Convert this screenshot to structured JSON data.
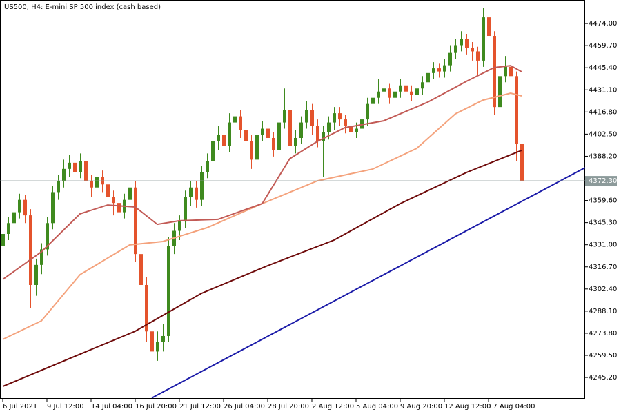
{
  "chart_data": {
    "type": "candlestick",
    "title": "US500, H4:  E-mini SP 500 index (cash based)",
    "up_color": "#3f8a1f",
    "down_color": "#e4532c",
    "xlim": [
      -0.5,
      105.5
    ],
    "ylim": [
      4231.4,
      4489.2
    ],
    "xticks": [
      {
        "value": 0,
        "label": "6 Jul 2021"
      },
      {
        "value": 8,
        "label": "9 Jul 12:00"
      },
      {
        "value": 16,
        "label": "14 Jul 04:00"
      },
      {
        "value": 24,
        "label": "16 Jul 20:00"
      },
      {
        "value": 32,
        "label": "21 Jul 12:00"
      },
      {
        "value": 40,
        "label": "26 Jul 04:00"
      },
      {
        "value": 48,
        "label": "28 Jul 20:00"
      },
      {
        "value": 56,
        "label": "2 Aug 12:00"
      },
      {
        "value": 64,
        "label": "5 Aug 04:00"
      },
      {
        "value": 72,
        "label": "9 Aug 20:00"
      },
      {
        "value": 80,
        "label": "12 Aug 12:00"
      },
      {
        "value": 88,
        "label": "17 Aug 04:00"
      }
    ],
    "yticks": [
      {
        "value": 4474,
        "label": "4474.00"
      },
      {
        "value": 4459.7,
        "label": "4459.70"
      },
      {
        "value": 4445.4,
        "label": "4445.40"
      },
      {
        "value": 4431.1,
        "label": "4431.10"
      },
      {
        "value": 4416.8,
        "label": "4416.80"
      },
      {
        "value": 4402.5,
        "label": "4402.50"
      },
      {
        "value": 4388.2,
        "label": "4388.20"
      },
      {
        "value": 4359.6,
        "label": "4359.60"
      },
      {
        "value": 4345.3,
        "label": "4345.30"
      },
      {
        "value": 4331,
        "label": "4331.00"
      },
      {
        "value": 4316.7,
        "label": "4316.70"
      },
      {
        "value": 4302.4,
        "label": "4302.40"
      },
      {
        "value": 4288.1,
        "label": "4288.10"
      },
      {
        "value": 4273.8,
        "label": "4273.80"
      },
      {
        "value": 4259.5,
        "label": "4259.50"
      },
      {
        "value": 4245.2,
        "label": "4245.20"
      }
    ],
    "price_line": {
      "value": 4372.3,
      "label": "4372.30"
    },
    "ohlc": [
      [
        4330,
        4342,
        4326,
        4338
      ],
      [
        4338,
        4349,
        4334,
        4345
      ],
      [
        4345,
        4356,
        4341,
        4352
      ],
      [
        4352,
        4364,
        4348,
        4360
      ],
      [
        4360,
        4363,
        4345,
        4350
      ],
      [
        4350,
        4354,
        4290,
        4305
      ],
      [
        4305,
        4322,
        4298,
        4318
      ],
      [
        4318,
        4332,
        4312,
        4328
      ],
      [
        4328,
        4349,
        4324,
        4345
      ],
      [
        4345,
        4369,
        4341,
        4365
      ],
      [
        4365,
        4376,
        4360,
        4372
      ],
      [
        4372,
        4386,
        4368,
        4380
      ],
      [
        4380,
        4389,
        4375,
        4384
      ],
      [
        4384,
        4388,
        4372,
        4378
      ],
      [
        4378,
        4390,
        4374,
        4385
      ],
      [
        4385,
        4388,
        4366,
        4372
      ],
      [
        4372,
        4376,
        4362,
        4368
      ],
      [
        4368,
        4380,
        4364,
        4375
      ],
      [
        4375,
        4379,
        4365,
        4370
      ],
      [
        4370,
        4374,
        4356,
        4362
      ],
      [
        4362,
        4366,
        4350,
        4358
      ],
      [
        4358,
        4362,
        4346,
        4352
      ],
      [
        4352,
        4364,
        4348,
        4360
      ],
      [
        4360,
        4371,
        4356,
        4368
      ],
      [
        4368,
        4372,
        4320,
        4325
      ],
      [
        4325,
        4330,
        4298,
        4305
      ],
      [
        4305,
        4310,
        4268,
        4275
      ],
      [
        4275,
        4280,
        4240,
        4262
      ],
      [
        4262,
        4275,
        4256,
        4268
      ],
      [
        4268,
        4280,
        4262,
        4272
      ],
      [
        4272,
        4336,
        4268,
        4330
      ],
      [
        4330,
        4345,
        4325,
        4340
      ],
      [
        4340,
        4350,
        4334,
        4346
      ],
      [
        4346,
        4366,
        4342,
        4362
      ],
      [
        4362,
        4372,
        4356,
        4368
      ],
      [
        4368,
        4372,
        4355,
        4360
      ],
      [
        4360,
        4382,
        4356,
        4378
      ],
      [
        4378,
        4390,
        4374,
        4385
      ],
      [
        4385,
        4404,
        4381,
        4398
      ],
      [
        4398,
        4408,
        4392,
        4402
      ],
      [
        4402,
        4406,
        4390,
        4395
      ],
      [
        4395,
        4416,
        4391,
        4410
      ],
      [
        4410,
        4420,
        4405,
        4414
      ],
      [
        4414,
        4418,
        4400,
        4405
      ],
      [
        4405,
        4409,
        4393,
        4398
      ],
      [
        4398,
        4402,
        4380,
        4386
      ],
      [
        4386,
        4406,
        4382,
        4402
      ],
      [
        4402,
        4411,
        4398,
        4406
      ],
      [
        4406,
        4410,
        4395,
        4400
      ],
      [
        4400,
        4404,
        4388,
        4392
      ],
      [
        4392,
        4415,
        4388,
        4410
      ],
      [
        4410,
        4432,
        4406,
        4418
      ],
      [
        4418,
        4422,
        4390,
        4395
      ],
      [
        4395,
        4405,
        4390,
        4400
      ],
      [
        4400,
        4414,
        4396,
        4410
      ],
      [
        4410,
        4424,
        4406,
        4418
      ],
      [
        4418,
        4422,
        4402,
        4408
      ],
      [
        4408,
        4412,
        4394,
        4398
      ],
      [
        4398,
        4408,
        4375,
        4404
      ],
      [
        4404,
        4414,
        4399,
        4410
      ],
      [
        4410,
        4420,
        4405,
        4416
      ],
      [
        4416,
        4420,
        4408,
        4412
      ],
      [
        4412,
        4415,
        4403,
        4408
      ],
      [
        4408,
        4412,
        4399,
        4404
      ],
      [
        4404,
        4410,
        4400,
        4406
      ],
      [
        4406,
        4416,
        4402,
        4412
      ],
      [
        4412,
        4426,
        4408,
        4422
      ],
      [
        4422,
        4430,
        4418,
        4426
      ],
      [
        4426,
        4438,
        4422,
        4430
      ],
      [
        4430,
        4436,
        4426,
        4432
      ],
      [
        4432,
        4435,
        4422,
        4426
      ],
      [
        4426,
        4434,
        4422,
        4430
      ],
      [
        4430,
        4438,
        4426,
        4434
      ],
      [
        4434,
        4437,
        4426,
        4430
      ],
      [
        4430,
        4434,
        4424,
        4428
      ],
      [
        4428,
        4436,
        4424,
        4432
      ],
      [
        4432,
        4440,
        4428,
        4436
      ],
      [
        4436,
        4446,
        4432,
        4442
      ],
      [
        4442,
        4449,
        4438,
        4445
      ],
      [
        4445,
        4448,
        4439,
        4443
      ],
      [
        4443,
        4451,
        4439,
        4447
      ],
      [
        4447,
        4460,
        4443,
        4455
      ],
      [
        4455,
        4464,
        4451,
        4460
      ],
      [
        4460,
        4469,
        4456,
        4464
      ],
      [
        4464,
        4467,
        4454,
        4458
      ],
      [
        4458,
        4462,
        4450,
        4456
      ],
      [
        4456,
        4459,
        4440,
        4450
      ],
      [
        4450,
        4484,
        4446,
        4478
      ],
      [
        4478,
        4481,
        4462,
        4466
      ],
      [
        4466,
        4469,
        4415,
        4420
      ],
      [
        4420,
        4446,
        4416,
        4440
      ],
      [
        4440,
        4453,
        4436,
        4446
      ],
      [
        4446,
        4450,
        4432,
        4440
      ],
      [
        4440,
        4443,
        4385,
        4396
      ],
      [
        4396,
        4400,
        4357,
        4372
      ]
    ],
    "lines": [
      {
        "color": "#f4a27c",
        "x": [
          0,
          7,
          14,
          23,
          29,
          37,
          47,
          57,
          67,
          75,
          82,
          87,
          92,
          94
        ],
        "values": [
          4269.8,
          4281.8,
          4311.7,
          4330.9,
          4333.1,
          4342,
          4357.6,
          4372.3,
          4379.9,
          4393.3,
          4415.6,
          4424.5,
          4429,
          4427.2
        ]
      },
      {
        "color": "#c25a55",
        "x": [
          0,
          7,
          14,
          19,
          24,
          28,
          32,
          39,
          47,
          52,
          57,
          62,
          69,
          77,
          84,
          89,
          92,
          94
        ],
        "values": [
          4308.6,
          4326.4,
          4351,
          4356.7,
          4355.4,
          4344.2,
          4346.5,
          4347.4,
          4357.6,
          4386.6,
          4397.8,
          4406.7,
          4411.1,
          4423.2,
          4436.6,
          4445.5,
          4446.8,
          4442.8
        ]
      },
      {
        "color": "#6e0a0a",
        "x": [
          0,
          12,
          24,
          36,
          48,
          60,
          72,
          84,
          94
        ],
        "values": [
          4239.4,
          4257.3,
          4275.1,
          4299.6,
          4317.5,
          4334,
          4357.6,
          4377.7,
          4392
        ]
      },
      {
        "color": "#1a1aa8",
        "x": [
          27,
          105.5
        ],
        "values": [
          4232,
          4380.8
        ]
      }
    ]
  }
}
